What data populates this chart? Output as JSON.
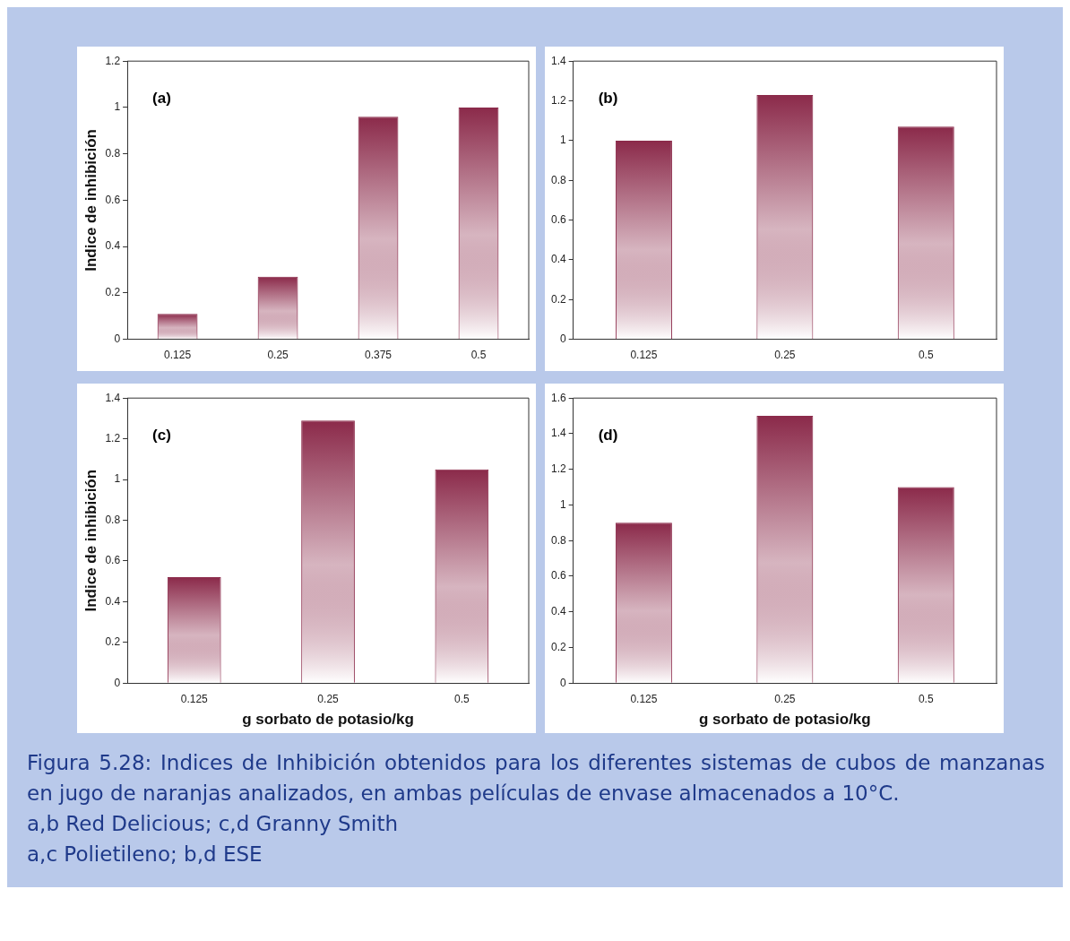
{
  "chart_data": [
    {
      "type": "bar",
      "categories": [
        "0.125",
        "0.25",
        "0.375",
        "0.5"
      ],
      "values": [
        0.11,
        0.27,
        0.96,
        1.0
      ],
      "color": "#8b2a4a",
      "ylabel": "Indice de inhibición",
      "ylim": [
        0,
        1.2
      ],
      "yticks": [
        0,
        0.2,
        0.4,
        0.6,
        0.8,
        1,
        1.2
      ],
      "grid": false,
      "legend": false,
      "annotations": [
        "(a)"
      ]
    },
    {
      "type": "bar",
      "categories": [
        "0.125",
        "0.25",
        "0.5"
      ],
      "values": [
        1.0,
        1.23,
        1.07
      ],
      "color": "#8b2a4a",
      "ylim": [
        0,
        1.4
      ],
      "yticks": [
        0,
        0.2,
        0.4,
        0.6,
        0.8,
        1,
        1.2,
        1.4
      ],
      "grid": false,
      "legend": false,
      "annotations": [
        "(b)"
      ]
    },
    {
      "type": "bar",
      "categories": [
        "0.125",
        "0.25",
        "0.5"
      ],
      "values": [
        0.52,
        1.29,
        1.05
      ],
      "color": "#8b2a4a",
      "ylabel": "Indice de inhibición",
      "xlabel": "g sorbato de potasio/kg",
      "ylim": [
        0,
        1.4
      ],
      "yticks": [
        0,
        0.2,
        0.4,
        0.6,
        0.8,
        1,
        1.2,
        1.4
      ],
      "grid": false,
      "legend": false,
      "annotations": [
        "(c)"
      ]
    },
    {
      "type": "bar",
      "categories": [
        "0.125",
        "0.25",
        "0.5"
      ],
      "values": [
        0.9,
        1.5,
        1.1
      ],
      "color": "#8b2a4a",
      "xlabel": "g sorbato de potasio/kg",
      "ylim": [
        0,
        1.6
      ],
      "yticks": [
        0,
        0.2,
        0.4,
        0.6,
        0.8,
        1,
        1.2,
        1.4,
        1.6
      ],
      "grid": false,
      "legend": false,
      "annotations": [
        "(d)",
        "Figura 5.28: Indices de Inhibición obtenidos para los diferentes sistemas de cubos de manzanas en jugo de naranjas analizados, en ambas películas de envase almacenados a 10°C.",
        "a,b Red Delicious; c,d Granny Smith",
        "a,c Polietileno; b,d ESE"
      ]
    }
  ]
}
